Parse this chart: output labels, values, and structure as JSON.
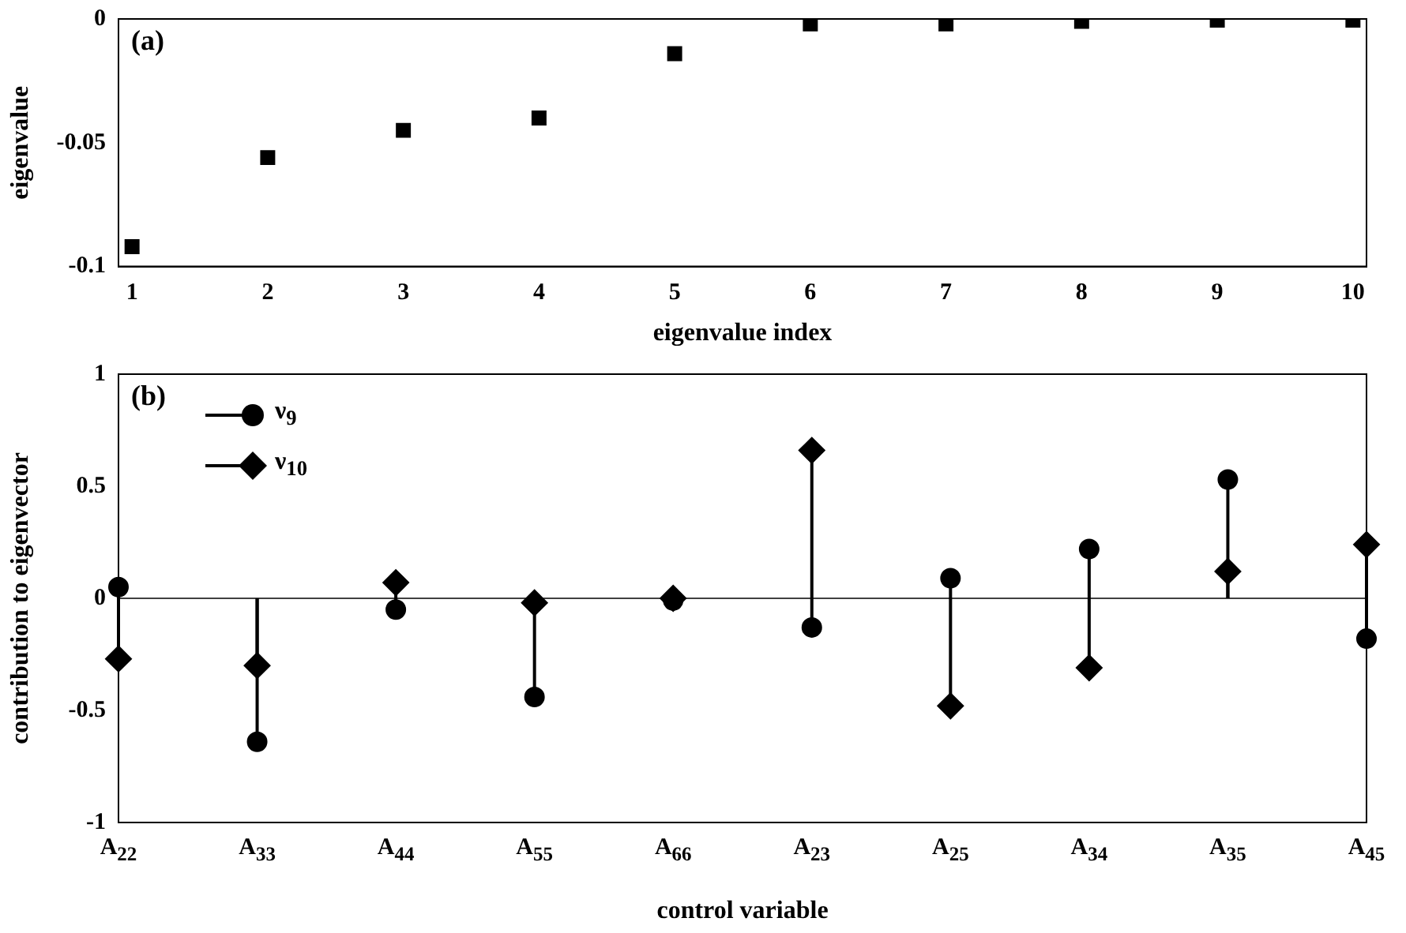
{
  "chart_data": [
    {
      "type": "scatter",
      "xlabel": "eigenvalue index",
      "ylabel": "eigenvalue",
      "annotations": [
        "(a)"
      ],
      "x": [
        1,
        2,
        3,
        4,
        5,
        6,
        7,
        8,
        9,
        10
      ],
      "values": [
        -0.092,
        -0.056,
        -0.045,
        -0.04,
        -0.014,
        -0.002,
        -0.002,
        -0.001,
        -0.0005,
        -0.0005
      ],
      "color": "#000000",
      "marker": "square",
      "xlim": [
        0.9,
        10.1
      ],
      "xticks": [
        1,
        2,
        3,
        4,
        5,
        6,
        7,
        8,
        9,
        10
      ],
      "ylim": [
        -0.1,
        0
      ],
      "yticks": [
        -0.1,
        -0.05,
        0
      ],
      "grid": false,
      "legend": false
    },
    {
      "type": "lollipop",
      "xlabel": "control variable",
      "ylabel": "contribution to eigenvector",
      "annotations": [
        "(b)"
      ],
      "categories": [
        "A$_{22}$",
        "A$_{33}$",
        "A$_{44}$",
        "A$_{55}$",
        "A$_{66}$",
        "A$_{23}$",
        "A$_{25}$",
        "A$_{34}$",
        "A$_{35}$",
        "A$_{45}$"
      ],
      "series": [
        {
          "name": "ν$_{9}$",
          "color": "#000000",
          "marker": "circle",
          "values": [
            0.05,
            -0.64,
            -0.05,
            -0.44,
            -0.01,
            -0.13,
            0.09,
            0.22,
            0.53,
            -0.18
          ]
        },
        {
          "name": "ν$_{10}$",
          "color": "#000000",
          "marker": "diamond",
          "values": [
            -0.27,
            -0.3,
            0.07,
            -0.02,
            0,
            0.66,
            -0.48,
            -0.31,
            0.12,
            0.24
          ]
        }
      ],
      "ylim": [
        -1,
        1
      ],
      "yticks": [
        -1,
        -0.5,
        0,
        0.5,
        1
      ],
      "ref_lines": [
        {
          "axis": "y",
          "value": 0
        }
      ],
      "grid": false,
      "legend": "top left"
    }
  ]
}
